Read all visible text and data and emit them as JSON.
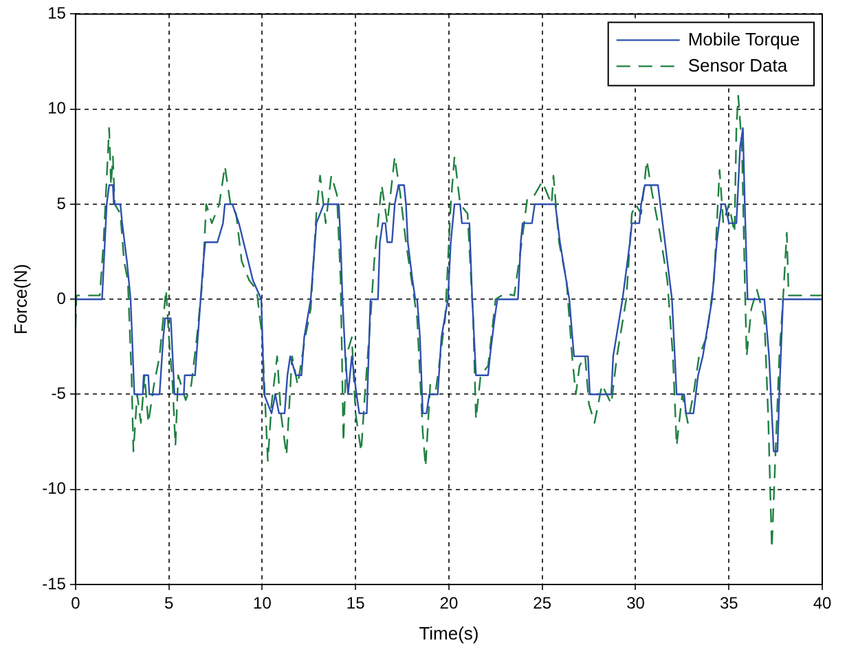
{
  "chart_data": {
    "type": "line",
    "xlabel": "Time(s)",
    "ylabel": "Force(N)",
    "xlim": [
      0,
      40
    ],
    "xticks": [
      0,
      5,
      10,
      15,
      20,
      25,
      30,
      35,
      40
    ],
    "ylim": [
      -15,
      15
    ],
    "yticks": [
      -15,
      -10,
      -5,
      0,
      5,
      10,
      15
    ],
    "grid": true,
    "legend": "top right",
    "marker": "none",
    "series": [
      {
        "name": "Mobile Torque",
        "color": "#2f4fb0",
        "line_style": "solid",
        "x": [
          0,
          1.42,
          1.67,
          1.8,
          2.0,
          2.05,
          2.4,
          2.5,
          2.75,
          2.95,
          3.15,
          3.6,
          3.65,
          3.9,
          3.95,
          4.5,
          4.7,
          4.8,
          5.1,
          5.3,
          5.8,
          5.85,
          6.4,
          6.7,
          6.85,
          6.95,
          7.6,
          7.9,
          8.0,
          8.4,
          8.75,
          9.0,
          9.5,
          9.95,
          10.1,
          10.5,
          10.7,
          10.9,
          11.2,
          11.35,
          11.5,
          11.8,
          12.1,
          12.25,
          12.6,
          12.75,
          12.9,
          13.3,
          14.1,
          14.2,
          14.3,
          14.45,
          14.6,
          14.8,
          15.05,
          15.2,
          15.6,
          15.7,
          15.8,
          16.2,
          16.3,
          16.45,
          16.6,
          16.7,
          16.95,
          17.1,
          17.3,
          17.6,
          17.7,
          17.8,
          18.05,
          18.2,
          18.3,
          18.45,
          18.6,
          18.8,
          18.95,
          19.4,
          19.6,
          19.95,
          20.1,
          20.3,
          20.6,
          20.7,
          21.1,
          21.25,
          21.45,
          22.1,
          22.2,
          22.45,
          22.6,
          23.7,
          23.85,
          23.95,
          24.45,
          24.6,
          25.7,
          25.95,
          26.45,
          26.7,
          27.45,
          27.55,
          28.7,
          28.8,
          29.3,
          29.7,
          29.8,
          30.2,
          30.3,
          30.5,
          31.2,
          31.45,
          31.7,
          31.95,
          32.2,
          32.6,
          32.7,
          33.1,
          33.35,
          33.6,
          34.1,
          34.35,
          34.6,
          34.8,
          35.0,
          35.4,
          35.6,
          35.75,
          35.85,
          36.0,
          36.9,
          37.15,
          37.4,
          37.6,
          37.7,
          37.9,
          40
        ],
        "values": [
          0,
          0,
          5,
          6,
          6,
          5,
          5,
          4,
          2,
          0,
          -5,
          -5,
          -4,
          -4,
          -5,
          -5,
          -2,
          -1,
          -1,
          -5,
          -5,
          -4,
          -4,
          0,
          2,
          3,
          3,
          4,
          5,
          5,
          4,
          3,
          1,
          0,
          -5,
          -6,
          -5,
          -6,
          -6,
          -4,
          -3,
          -4,
          -4,
          -2,
          0,
          2,
          4,
          5,
          5,
          3,
          0,
          -3,
          -5,
          -3,
          -5,
          -6,
          -6,
          -3,
          0,
          0,
          3,
          4,
          4,
          3,
          3,
          5,
          6,
          6,
          5,
          3,
          1,
          0,
          0,
          -2,
          -6,
          -6,
          -5,
          -5,
          -2,
          0,
          3,
          5,
          5,
          4,
          4,
          0,
          -4,
          -4,
          -3,
          -1,
          0,
          0,
          3,
          4,
          4,
          5,
          5,
          3,
          0,
          -3,
          -3,
          -5,
          -5,
          -3,
          0,
          3,
          4,
          4,
          5,
          6,
          6,
          4,
          2,
          0,
          -5,
          -5,
          -6,
          -6,
          -4,
          -3,
          0,
          3,
          5,
          5,
          4,
          4,
          8,
          9,
          5,
          0,
          0,
          -3,
          -8,
          -8,
          -5,
          0,
          0
        ]
      },
      {
        "name": "Sensor Data",
        "color": "#1f8040",
        "line_style": "dashed",
        "x": [
          0,
          0.05,
          1.3,
          1.5,
          1.7,
          1.8,
          1.9,
          2.0,
          2.1,
          2.4,
          2.6,
          2.8,
          3.0,
          3.1,
          3.3,
          3.5,
          3.7,
          3.9,
          4.2,
          4.5,
          4.7,
          4.85,
          5.0,
          5.2,
          5.35,
          5.5,
          5.9,
          6.2,
          6.5,
          6.8,
          7.0,
          7.3,
          7.7,
          8.0,
          8.3,
          8.6,
          8.9,
          9.3,
          9.7,
          10.0,
          10.3,
          10.5,
          10.8,
          11.0,
          11.3,
          11.6,
          11.9,
          12.3,
          12.6,
          12.9,
          13.1,
          13.4,
          13.7,
          14.0,
          14.2,
          14.35,
          14.5,
          14.8,
          15.0,
          15.3,
          15.5,
          15.8,
          16.0,
          16.4,
          16.7,
          17.1,
          17.4,
          17.7,
          18.0,
          18.3,
          18.6,
          18.75,
          19.0,
          19.3,
          19.8,
          20.1,
          20.3,
          20.6,
          21.0,
          21.3,
          21.45,
          21.7,
          22.1,
          22.5,
          23.0,
          23.5,
          23.9,
          24.2,
          24.6,
          25.0,
          25.5,
          25.6,
          25.9,
          26.3,
          26.6,
          26.8,
          27.0,
          27.3,
          27.5,
          27.8,
          28.2,
          28.7,
          29.0,
          29.5,
          29.8,
          30.0,
          30.3,
          30.6,
          30.9,
          31.3,
          31.7,
          32.0,
          32.2,
          32.5,
          32.8,
          33.1,
          33.4,
          33.8,
          34.2,
          34.5,
          34.7,
          35.0,
          35.3,
          35.4,
          35.5,
          35.7,
          35.85,
          35.95,
          36.2,
          36.5,
          36.9,
          37.1,
          37.3,
          37.5,
          37.7,
          37.9,
          38.1,
          38.2,
          40
        ],
        "values": [
          -1.5,
          0.2,
          0.2,
          3,
          7,
          9,
          6,
          7.5,
          5,
          4.5,
          2,
          1,
          -4,
          -8,
          -5,
          -6.5,
          -4,
          -6.5,
          -4.5,
          -3,
          -1,
          0.5,
          -2,
          -4.5,
          -7.7,
          -4,
          -5.3,
          -4.5,
          -2,
          1,
          5,
          4,
          5,
          7,
          5,
          4.5,
          2,
          1,
          0.5,
          -2,
          -8.5,
          -5.5,
          -3,
          -6,
          -8.2,
          -3,
          -4.5,
          -2,
          -0.5,
          4.5,
          6.5,
          4,
          6.5,
          5.5,
          1,
          -7.5,
          -3,
          -2,
          -6,
          -8,
          -5,
          -1,
          2,
          6,
          4,
          7.5,
          5.5,
          3,
          1,
          -1,
          -7,
          -8.8,
          -4.5,
          -4.8,
          -1,
          5,
          7.5,
          5,
          4.5,
          -1,
          -6.3,
          -4,
          -3.5,
          0,
          0.3,
          0.2,
          3,
          5.3,
          5.5,
          6.2,
          5,
          6.5,
          3,
          1,
          -3,
          -5,
          -3.5,
          -3,
          -5.5,
          -6.5,
          -4.5,
          -5.5,
          -3,
          0,
          4.5,
          5,
          4.5,
          7.3,
          5.5,
          3.5,
          1,
          -3,
          -7.7,
          -5,
          -6.5,
          -5,
          -3,
          -2,
          1,
          6.8,
          4,
          5,
          3.5,
          9,
          10.7,
          8,
          1,
          -3,
          -0.5,
          0.5,
          -1,
          -6,
          -13.1,
          -8,
          -3,
          0,
          3.5,
          0.2,
          0.2
        ]
      }
    ]
  }
}
